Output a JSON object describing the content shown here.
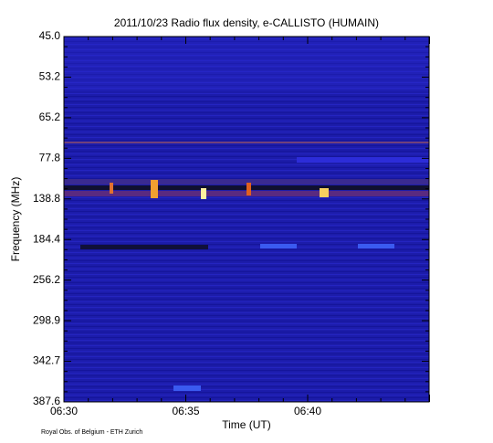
{
  "chart_data": {
    "type": "heatmap",
    "title": "2011/10/23  Radio flux density, e-CALLISTO (HUMAIN)",
    "y_label": "Frequency (MHz)",
    "x_label": "Time (UT)",
    "y_tick_labels": [
      "45.0",
      "53.2",
      "65.2",
      "77.8",
      "138.8",
      "184.4",
      "256.2",
      "298.9",
      "342.7",
      "387.6"
    ],
    "x_tick_labels": [
      "06:30",
      "06:35",
      "06:40"
    ],
    "footer": "Royal Obs. of Belgium - ETH Zurich"
  }
}
